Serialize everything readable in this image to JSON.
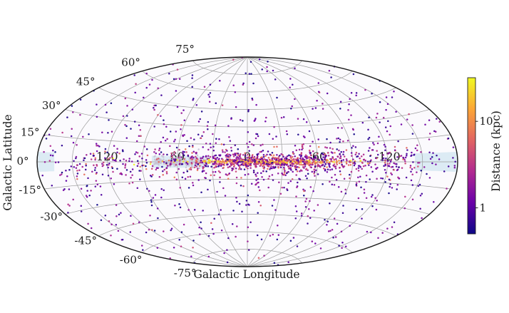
{
  "figure": {
    "background": "#ffffff",
    "map_background": "#fbfafd",
    "outline_color": "#1a1a1a",
    "grid_color": "#9b9b9b",
    "text_color": "#1b1b1b",
    "shaded_region_color": "#cfe4f0",
    "gray_points_color": "#c7c3d4"
  },
  "chart_data": {
    "type": "scatter",
    "projection": "aitoff",
    "title": "",
    "xlabel": "Galactic Longitude",
    "ylabel": "Galactic Latitude",
    "longitude_range_deg": [
      -180,
      180
    ],
    "latitude_range_deg": [
      -90,
      90
    ],
    "graticule": {
      "meridian_step_deg": 30,
      "parallel_step_deg": 15,
      "grid_on": true
    },
    "latitude_ticks": [
      {
        "deg": 75,
        "label": "75°"
      },
      {
        "deg": 60,
        "label": "60°"
      },
      {
        "deg": 45,
        "label": "45°"
      },
      {
        "deg": 30,
        "label": "30°"
      },
      {
        "deg": 15,
        "label": "15°"
      },
      {
        "deg": 0,
        "label": "0°"
      },
      {
        "deg": -15,
        "label": "-15°"
      },
      {
        "deg": -30,
        "label": "-30°"
      },
      {
        "deg": -45,
        "label": "-45°"
      },
      {
        "deg": -60,
        "label": "-60°"
      },
      {
        "deg": -75,
        "label": "-75°"
      }
    ],
    "longitude_ticks": [
      {
        "deg": 120,
        "label": "120"
      },
      {
        "deg": 60,
        "label": "60"
      },
      {
        "deg": 0,
        "label": "0"
      },
      {
        "deg": -60,
        "label": "-60"
      },
      {
        "deg": -120,
        "label": "-120"
      }
    ],
    "colorbar": {
      "label": "Distance (kpc)",
      "scale": "log",
      "domain_kpc": [
        0.5,
        32
      ],
      "ticks": [
        {
          "value": 10,
          "label": "10"
        },
        {
          "value": 1,
          "label": "1"
        }
      ],
      "colormap": "plasma",
      "colormap_stops": [
        "#0d0887",
        "#6a00a8",
        "#b12a90",
        "#e16462",
        "#fca636",
        "#f0f921"
      ],
      "orientation": "vertical",
      "position": "right"
    },
    "shaded_regions": [
      {
        "name": "left-edge-band",
        "lon_deg": [
          180,
          166
        ],
        "lat_deg": [
          -5.5,
          5.5
        ]
      },
      {
        "name": "inner-plane-band",
        "lon_deg": [
          82,
          33
        ],
        "lat_deg": [
          -4.8,
          4.8
        ]
      },
      {
        "name": "right-edge-band",
        "lon_deg": [
          -144,
          -180
        ],
        "lat_deg": [
          -5.5,
          5.5
        ]
      }
    ],
    "random_seed": 42,
    "point_radius_px": 1.25,
    "point_populations": [
      {
        "name": "inner-galactic-plane",
        "count": 800,
        "lon": {
          "type": "normal",
          "mean": -18,
          "sigma": 35
        },
        "lat": {
          "type": "normal",
          "sigma": 1.6,
          "sigma2": 5.5,
          "frac2": 0.45
        },
        "dist": {
          "type": "plane_conditional",
          "inner_abs_lat": 1.3,
          "inner_kpc": [
            4,
            28
          ],
          "outer_kpc": [
            0.8,
            9
          ]
        }
      },
      {
        "name": "extended-plane",
        "count": 360,
        "lon": {
          "type": "uniform",
          "min": -148,
          "max": 148
        },
        "lat": {
          "type": "normal",
          "sigma": 4.3,
          "sigma2": 8,
          "frac2": 0.25
        },
        "dist": {
          "type": "loguniform",
          "min": 0.7,
          "max": 8
        }
      },
      {
        "name": "thick-disk",
        "count": 290,
        "lon": {
          "type": "uniform",
          "min": -180,
          "max": 180
        },
        "lat": {
          "type": "normal",
          "sigma": 13
        },
        "dist": {
          "type": "loguniform",
          "min": 0.5,
          "max": 3
        }
      },
      {
        "name": "high-latitude-isotropic",
        "count": 580,
        "lon": {
          "type": "uniform",
          "min": -180,
          "max": 180
        },
        "lat": {
          "type": "isotropic"
        },
        "dist": {
          "type": "loguniform",
          "min": 0.5,
          "max": 2.2,
          "tail_frac": 0.09,
          "tail_mult": 3.2
        }
      },
      {
        "name": "masked-gray-cluster",
        "count": 200,
        "lon": {
          "type": "uniform",
          "min": 35,
          "max": 80
        },
        "lat": {
          "type": "normal",
          "sigma": 1.7,
          "sigma2": 3.4,
          "frac2": 0.2
        },
        "color": "#c7c3d4"
      },
      {
        "name": "distant-yellow-sources",
        "count": 7,
        "lon": {
          "type": "list",
          "values": [
            115,
            97,
            83,
            60,
            33,
            -28,
            -97
          ]
        },
        "lat": {
          "type": "normal",
          "sigma": 1.2
        },
        "dist": {
          "type": "fixed",
          "value": 30
        }
      }
    ]
  }
}
